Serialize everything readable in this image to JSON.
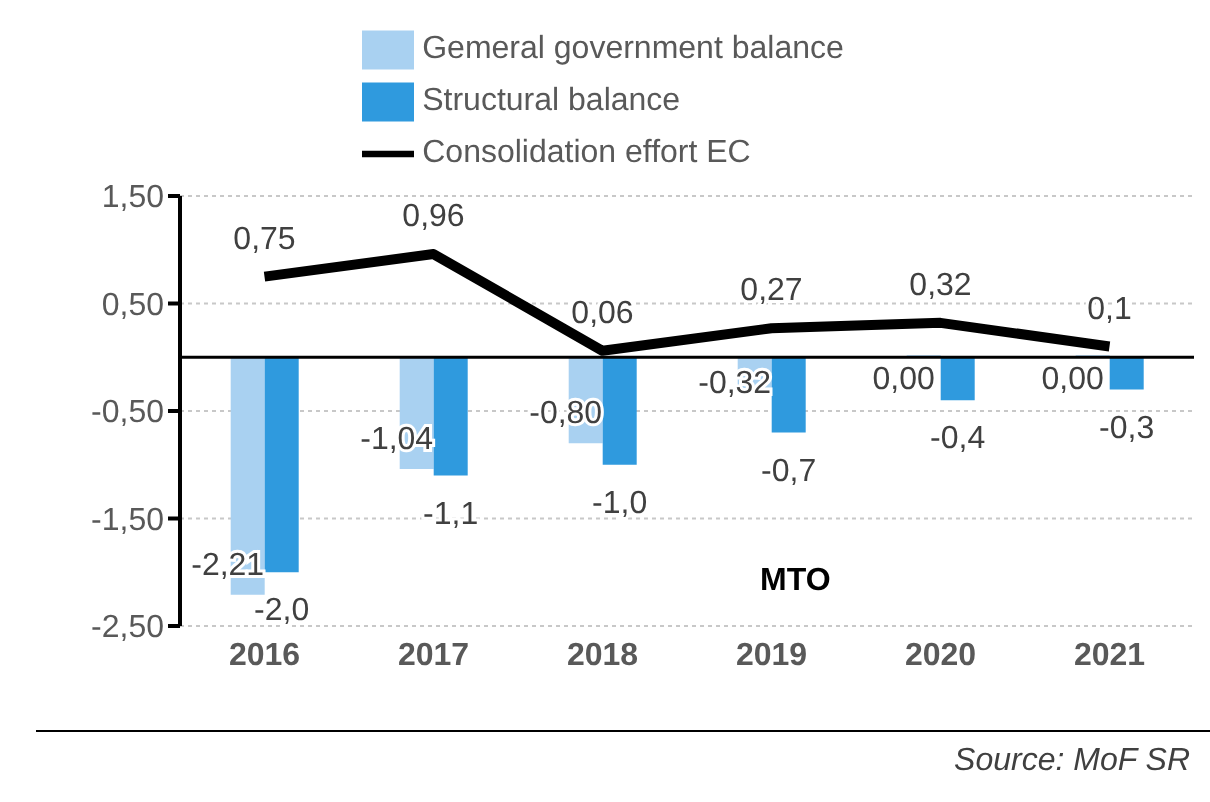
{
  "chart_data": {
    "type": "bar",
    "categories": [
      "2016",
      "2017",
      "2018",
      "2019",
      "2020",
      "2021"
    ],
    "series": [
      {
        "name": "Gemeral government balance",
        "color": "#a9d1f1",
        "values": [
          -2.21,
          -1.04,
          -0.8,
          -0.32,
          0.0,
          0.0
        ],
        "value_labels": [
          "-2,21",
          "-1,04",
          "-0,80",
          "-0,32",
          "0,00",
          "0,00"
        ]
      },
      {
        "name": "Structural balance",
        "color": "#2f9ade",
        "values": [
          -2.0,
          -1.1,
          -1.0,
          -0.7,
          -0.4,
          -0.3
        ],
        "value_labels": [
          "-2,0",
          "-1,1",
          "-1,0",
          "-0,7",
          "-0,4",
          "-0,3"
        ]
      },
      {
        "name": "Consolidation effort EC",
        "type": "line",
        "color": "#000000",
        "values": [
          0.75,
          0.96,
          0.06,
          0.27,
          0.32,
          0.1
        ],
        "value_labels": [
          "0,75",
          "0,96",
          "0,06",
          "0,27",
          "0,32",
          "0,1"
        ]
      }
    ],
    "ylim": [
      -2.5,
      1.5
    ],
    "yticks": [
      {
        "value": 1.5,
        "label": "1,50"
      },
      {
        "value": 0.5,
        "label": "0,50"
      },
      {
        "value": -0.5,
        "label": "-0,50"
      },
      {
        "value": -1.5,
        "label": "-1,50"
      },
      {
        "value": -2.5,
        "label": "-2,50"
      }
    ],
    "grid": "y",
    "legend": "top",
    "ref_lines": [
      {
        "axis": "y",
        "value": 0,
        "color": "#000000"
      }
    ],
    "annotations": [
      "MTO",
      "Source: MoF SR"
    ]
  }
}
